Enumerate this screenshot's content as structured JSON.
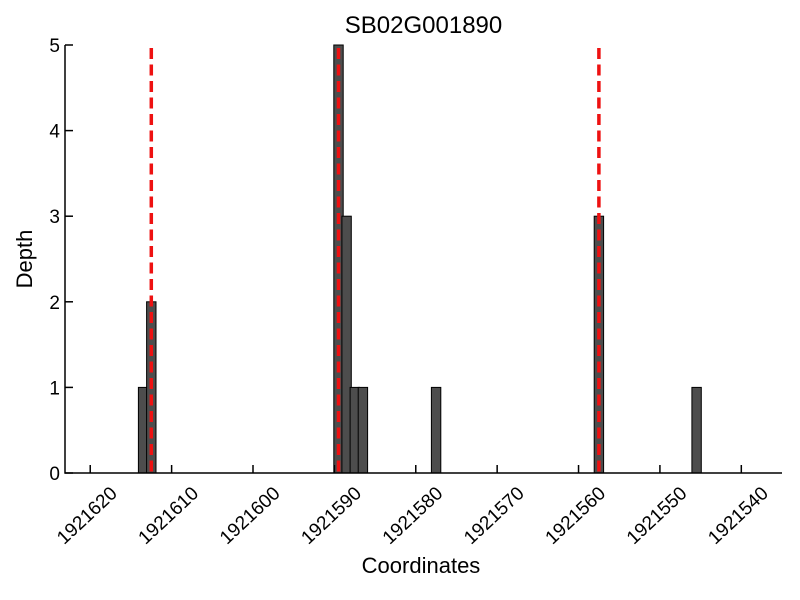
{
  "chart_data": {
    "type": "bar",
    "title": "SB02G001890",
    "xlabel": "Coordinates",
    "ylabel": "Depth",
    "x_axis_reversed": true,
    "xlim": [
      1921623.1,
      1921535.0
    ],
    "ylim": [
      0,
      5
    ],
    "x_ticks": [
      1921620,
      1921610,
      1921600,
      1921590,
      1921580,
      1921570,
      1921560,
      1921550,
      1921540
    ],
    "x_tick_labels": [
      "1921620",
      "1921610",
      "1921600",
      "1921590",
      "1921580",
      "1921570",
      "1921560",
      "1921550",
      "1921540"
    ],
    "y_ticks": [
      0,
      1,
      2,
      3,
      4,
      5
    ],
    "y_tick_labels": [
      "0",
      "1",
      "2",
      "3",
      "4",
      "5"
    ],
    "bars": [
      {
        "coordinate": 1921613.5,
        "depth": 1
      },
      {
        "coordinate": 1921612.5,
        "depth": 2
      },
      {
        "coordinate": 1921589.5,
        "depth": 5
      },
      {
        "coordinate": 1921588.5,
        "depth": 3
      },
      {
        "coordinate": 1921587.5,
        "depth": 1
      },
      {
        "coordinate": 1921586.5,
        "depth": 1
      },
      {
        "coordinate": 1921577.5,
        "depth": 1
      },
      {
        "coordinate": 1921557.5,
        "depth": 3
      },
      {
        "coordinate": 1921545.5,
        "depth": 1
      }
    ],
    "bar_width_units": 1.15,
    "marker_lines": {
      "style": "dashed",
      "positions": [
        1921612.5,
        1921589.5,
        1921557.5
      ]
    },
    "colors": {
      "bar_fill": "#4d4d4d",
      "bar_edge": "#000000",
      "marker_line": "#ee1111",
      "axis": "#000000",
      "background": "#ffffff"
    },
    "legend": "none",
    "grid": false
  }
}
